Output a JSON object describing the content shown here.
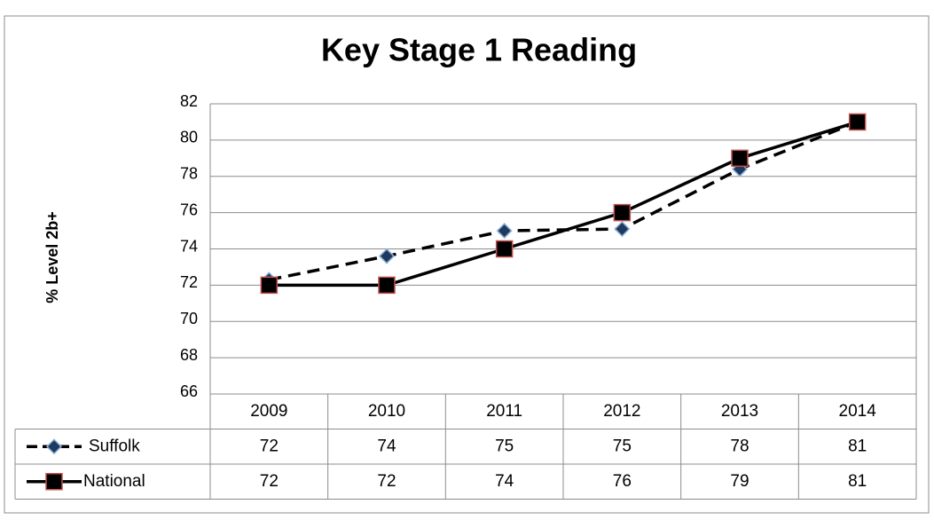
{
  "chart_data": {
    "type": "line",
    "title": "Key Stage 1 Reading",
    "y_label": "% Level 2b+",
    "categories": [
      "2009",
      "2010",
      "2011",
      "2012",
      "2013",
      "2014"
    ],
    "series": [
      {
        "name": "Suffolk",
        "color": "#000000",
        "dash": true,
        "marker": "diamond",
        "marker_fill": "#1f3a5f",
        "marker_edge": "#8fb3d9",
        "values": [
          72.3,
          73.6,
          75,
          75.1,
          78.4,
          81
        ],
        "value_labels": [
          "72",
          "74",
          "75",
          "75",
          "78",
          "81"
        ]
      },
      {
        "name": "National",
        "color": "#000000",
        "dash": false,
        "marker": "square",
        "marker_fill": "#000000",
        "marker_edge": "#c0504d",
        "values": [
          72,
          72,
          74,
          76,
          79,
          81
        ]
      }
    ],
    "ylim": [
      66,
      82
    ],
    "yticks": [
      66,
      68,
      70,
      72,
      74,
      76,
      78,
      80,
      82
    ],
    "grid": true,
    "data_table": true
  }
}
